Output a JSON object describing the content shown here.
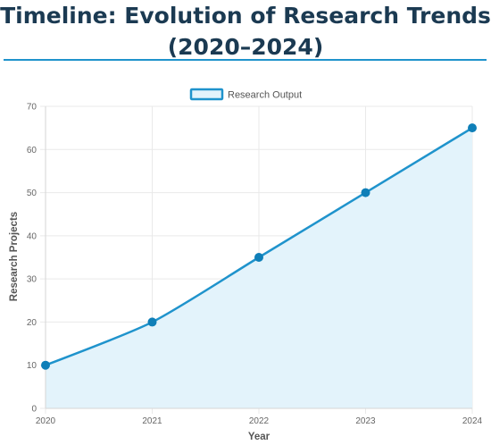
{
  "page": {
    "title_line1": "Timeline: Evolution of Research Trends",
    "title_line2": "(2020–2024)"
  },
  "colors": {
    "title": "#1b3a52",
    "accent": "#1f93cc",
    "line": "#1f93cc",
    "fill": "#e3f3fb",
    "point": "#0f7fb8",
    "grid": "#e9e9e9"
  },
  "chart_data": {
    "type": "area",
    "x": [
      "2020",
      "2021",
      "2022",
      "2023",
      "2024"
    ],
    "series": [
      {
        "name": "Research Output",
        "values": [
          10,
          20,
          35,
          50,
          65
        ]
      }
    ],
    "xlabel": "Year",
    "ylabel": "Research Projects",
    "ylim": [
      0,
      70
    ],
    "yticks": [
      0,
      10,
      20,
      30,
      40,
      50,
      60,
      70
    ],
    "grid": true,
    "legend": "top-center"
  }
}
